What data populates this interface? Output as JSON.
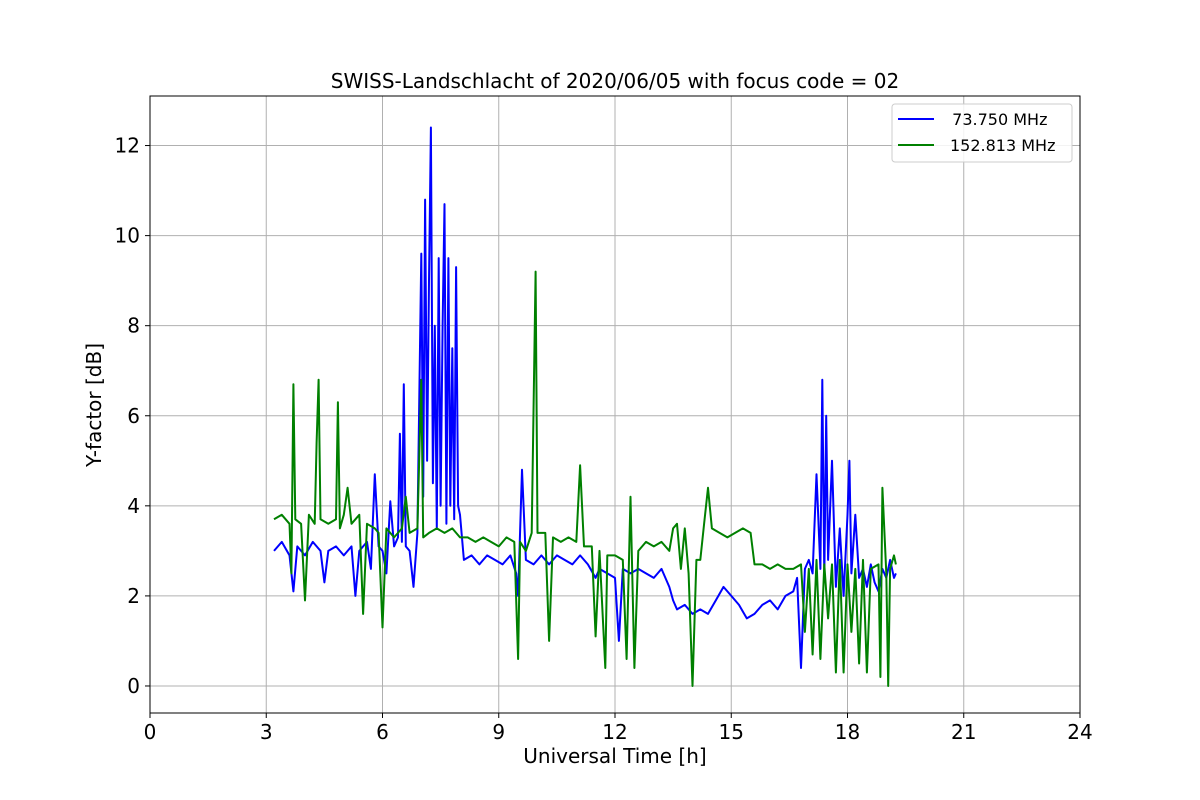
{
  "chart_data": {
    "type": "line",
    "title": "SWISS-Landschlacht of 2020/06/05 with focus code = 02",
    "xlabel": "Universal Time [h]",
    "ylabel": "Y-factor [dB]",
    "xlim": [
      0,
      24
    ],
    "ylim": [
      -0.6,
      13.1
    ],
    "xticks": [
      0,
      3,
      6,
      9,
      12,
      15,
      18,
      21,
      24
    ],
    "yticks": [
      0,
      2,
      4,
      6,
      8,
      10,
      12
    ],
    "grid": true,
    "legend_position": "top-right",
    "series": [
      {
        "name": "  73.750 MHz",
        "color": "#0000ff",
        "points": [
          [
            3.2,
            3.0
          ],
          [
            3.4,
            3.2
          ],
          [
            3.6,
            2.9
          ],
          [
            3.7,
            2.1
          ],
          [
            3.8,
            3.1
          ],
          [
            4.0,
            2.9
          ],
          [
            4.2,
            3.2
          ],
          [
            4.4,
            3.0
          ],
          [
            4.5,
            2.3
          ],
          [
            4.6,
            3.0
          ],
          [
            4.8,
            3.1
          ],
          [
            5.0,
            2.9
          ],
          [
            5.2,
            3.1
          ],
          [
            5.3,
            2.0
          ],
          [
            5.4,
            3.0
          ],
          [
            5.6,
            3.2
          ],
          [
            5.7,
            2.6
          ],
          [
            5.8,
            4.7
          ],
          [
            5.9,
            3.1
          ],
          [
            6.0,
            3.0
          ],
          [
            6.1,
            2.5
          ],
          [
            6.2,
            4.1
          ],
          [
            6.3,
            3.1
          ],
          [
            6.4,
            3.3
          ],
          [
            6.45,
            5.6
          ],
          [
            6.5,
            3.2
          ],
          [
            6.55,
            6.7
          ],
          [
            6.6,
            3.1
          ],
          [
            6.7,
            3.0
          ],
          [
            6.8,
            2.2
          ],
          [
            6.9,
            3.4
          ],
          [
            7.0,
            9.6
          ],
          [
            7.05,
            4.2
          ],
          [
            7.1,
            10.8
          ],
          [
            7.15,
            5.0
          ],
          [
            7.2,
            9.0
          ],
          [
            7.25,
            12.4
          ],
          [
            7.3,
            4.5
          ],
          [
            7.35,
            8.0
          ],
          [
            7.4,
            3.5
          ],
          [
            7.45,
            9.5
          ],
          [
            7.5,
            4.0
          ],
          [
            7.55,
            8.0
          ],
          [
            7.6,
            10.7
          ],
          [
            7.65,
            3.6
          ],
          [
            7.7,
            9.5
          ],
          [
            7.75,
            4.0
          ],
          [
            7.8,
            7.5
          ],
          [
            7.85,
            3.7
          ],
          [
            7.9,
            9.3
          ],
          [
            7.95,
            4.0
          ],
          [
            8.0,
            3.8
          ],
          [
            8.1,
            2.8
          ],
          [
            8.3,
            2.9
          ],
          [
            8.5,
            2.7
          ],
          [
            8.7,
            2.9
          ],
          [
            8.9,
            2.8
          ],
          [
            9.1,
            2.7
          ],
          [
            9.3,
            2.9
          ],
          [
            9.45,
            2.5
          ],
          [
            9.5,
            2.0
          ],
          [
            9.6,
            4.8
          ],
          [
            9.7,
            2.8
          ],
          [
            9.9,
            2.7
          ],
          [
            10.1,
            2.9
          ],
          [
            10.3,
            2.7
          ],
          [
            10.5,
            2.9
          ],
          [
            10.7,
            2.8
          ],
          [
            10.9,
            2.7
          ],
          [
            11.1,
            2.9
          ],
          [
            11.3,
            2.7
          ],
          [
            11.5,
            2.4
          ],
          [
            11.6,
            2.6
          ],
          [
            11.8,
            2.5
          ],
          [
            12.0,
            2.4
          ],
          [
            12.1,
            1.0
          ],
          [
            12.2,
            2.6
          ],
          [
            12.4,
            2.5
          ],
          [
            12.6,
            2.6
          ],
          [
            12.8,
            2.5
          ],
          [
            13.0,
            2.4
          ],
          [
            13.2,
            2.6
          ],
          [
            13.4,
            2.2
          ],
          [
            13.5,
            1.9
          ],
          [
            13.6,
            1.7
          ],
          [
            13.8,
            1.8
          ],
          [
            14.0,
            1.6
          ],
          [
            14.2,
            1.7
          ],
          [
            14.4,
            1.6
          ],
          [
            14.6,
            1.9
          ],
          [
            14.8,
            2.2
          ],
          [
            15.0,
            2.0
          ],
          [
            15.2,
            1.8
          ],
          [
            15.4,
            1.5
          ],
          [
            15.6,
            1.6
          ],
          [
            15.8,
            1.8
          ],
          [
            16.0,
            1.9
          ],
          [
            16.2,
            1.7
          ],
          [
            16.4,
            2.0
          ],
          [
            16.6,
            2.1
          ],
          [
            16.7,
            2.4
          ],
          [
            16.8,
            0.4
          ],
          [
            16.9,
            2.6
          ],
          [
            17.0,
            2.8
          ],
          [
            17.1,
            2.5
          ],
          [
            17.2,
            4.7
          ],
          [
            17.3,
            2.6
          ],
          [
            17.35,
            6.8
          ],
          [
            17.4,
            2.4
          ],
          [
            17.45,
            6.0
          ],
          [
            17.5,
            2.8
          ],
          [
            17.6,
            5.0
          ],
          [
            17.7,
            2.2
          ],
          [
            17.8,
            3.5
          ],
          [
            17.9,
            2.0
          ],
          [
            18.0,
            3.8
          ],
          [
            18.05,
            5.0
          ],
          [
            18.1,
            2.5
          ],
          [
            18.2,
            3.8
          ],
          [
            18.3,
            2.4
          ],
          [
            18.4,
            2.6
          ],
          [
            18.5,
            2.2
          ],
          [
            18.6,
            2.7
          ],
          [
            18.7,
            2.3
          ],
          [
            18.8,
            2.1
          ],
          [
            18.9,
            2.6
          ],
          [
            19.0,
            2.4
          ],
          [
            19.1,
            2.8
          ],
          [
            19.2,
            2.4
          ],
          [
            19.25,
            2.5
          ]
        ]
      },
      {
        "name": "152.813 MHz",
        "color": "#008000",
        "points": [
          [
            3.2,
            3.7
          ],
          [
            3.4,
            3.8
          ],
          [
            3.6,
            3.6
          ],
          [
            3.65,
            2.5
          ],
          [
            3.7,
            6.7
          ],
          [
            3.75,
            3.7
          ],
          [
            3.9,
            3.6
          ],
          [
            4.0,
            1.9
          ],
          [
            4.1,
            3.8
          ],
          [
            4.25,
            3.6
          ],
          [
            4.3,
            5.4
          ],
          [
            4.35,
            6.8
          ],
          [
            4.4,
            3.7
          ],
          [
            4.6,
            3.6
          ],
          [
            4.8,
            3.7
          ],
          [
            4.85,
            6.3
          ],
          [
            4.9,
            3.5
          ],
          [
            5.0,
            3.8
          ],
          [
            5.1,
            4.4
          ],
          [
            5.2,
            3.6
          ],
          [
            5.4,
            3.8
          ],
          [
            5.5,
            1.6
          ],
          [
            5.6,
            3.6
          ],
          [
            5.8,
            3.5
          ],
          [
            5.9,
            3.4
          ],
          [
            6.0,
            1.3
          ],
          [
            6.1,
            3.5
          ],
          [
            6.3,
            3.3
          ],
          [
            6.5,
            3.5
          ],
          [
            6.6,
            4.2
          ],
          [
            6.7,
            3.4
          ],
          [
            6.9,
            3.5
          ],
          [
            7.0,
            6.8
          ],
          [
            7.05,
            3.3
          ],
          [
            7.2,
            3.4
          ],
          [
            7.4,
            3.5
          ],
          [
            7.6,
            3.4
          ],
          [
            7.8,
            3.5
          ],
          [
            8.0,
            3.3
          ],
          [
            8.2,
            3.3
          ],
          [
            8.4,
            3.2
          ],
          [
            8.6,
            3.3
          ],
          [
            8.8,
            3.2
          ],
          [
            9.0,
            3.1
          ],
          [
            9.2,
            3.3
          ],
          [
            9.4,
            3.2
          ],
          [
            9.5,
            0.6
          ],
          [
            9.55,
            3.2
          ],
          [
            9.7,
            3.0
          ],
          [
            9.85,
            3.4
          ],
          [
            9.95,
            9.2
          ],
          [
            10.0,
            3.4
          ],
          [
            10.2,
            3.4
          ],
          [
            10.3,
            1.0
          ],
          [
            10.4,
            3.3
          ],
          [
            10.6,
            3.2
          ],
          [
            10.8,
            3.3
          ],
          [
            11.0,
            3.2
          ],
          [
            11.1,
            4.9
          ],
          [
            11.2,
            3.1
          ],
          [
            11.4,
            3.1
          ],
          [
            11.5,
            1.1
          ],
          [
            11.6,
            3.0
          ],
          [
            11.75,
            0.4
          ],
          [
            11.8,
            2.9
          ],
          [
            12.0,
            2.9
          ],
          [
            12.2,
            2.8
          ],
          [
            12.3,
            0.6
          ],
          [
            12.4,
            4.2
          ],
          [
            12.5,
            0.4
          ],
          [
            12.6,
            3.0
          ],
          [
            12.8,
            3.2
          ],
          [
            13.0,
            3.1
          ],
          [
            13.2,
            3.2
          ],
          [
            13.4,
            3.0
          ],
          [
            13.5,
            3.5
          ],
          [
            13.6,
            3.6
          ],
          [
            13.7,
            2.6
          ],
          [
            13.8,
            3.5
          ],
          [
            13.9,
            2.5
          ],
          [
            14.0,
            0.0
          ],
          [
            14.1,
            2.8
          ],
          [
            14.2,
            2.8
          ],
          [
            14.3,
            3.6
          ],
          [
            14.4,
            4.4
          ],
          [
            14.5,
            3.5
          ],
          [
            14.7,
            3.4
          ],
          [
            14.9,
            3.3
          ],
          [
            15.1,
            3.4
          ],
          [
            15.3,
            3.5
          ],
          [
            15.5,
            3.4
          ],
          [
            15.6,
            2.7
          ],
          [
            15.8,
            2.7
          ],
          [
            16.0,
            2.6
          ],
          [
            16.2,
            2.7
          ],
          [
            16.4,
            2.6
          ],
          [
            16.6,
            2.6
          ],
          [
            16.8,
            2.7
          ],
          [
            16.9,
            1.2
          ],
          [
            17.0,
            2.6
          ],
          [
            17.1,
            0.7
          ],
          [
            17.2,
            2.8
          ],
          [
            17.3,
            0.6
          ],
          [
            17.4,
            2.7
          ],
          [
            17.5,
            1.5
          ],
          [
            17.6,
            2.7
          ],
          [
            17.7,
            0.3
          ],
          [
            17.8,
            2.8
          ],
          [
            17.9,
            0.3
          ],
          [
            18.0,
            2.7
          ],
          [
            18.1,
            1.2
          ],
          [
            18.2,
            2.6
          ],
          [
            18.3,
            0.5
          ],
          [
            18.4,
            2.8
          ],
          [
            18.5,
            0.3
          ],
          [
            18.6,
            2.6
          ],
          [
            18.8,
            2.7
          ],
          [
            18.85,
            0.2
          ],
          [
            18.9,
            4.4
          ],
          [
            19.0,
            2.5
          ],
          [
            19.05,
            0.0
          ],
          [
            19.1,
            2.6
          ],
          [
            19.2,
            2.9
          ],
          [
            19.25,
            2.7
          ]
        ]
      }
    ]
  }
}
